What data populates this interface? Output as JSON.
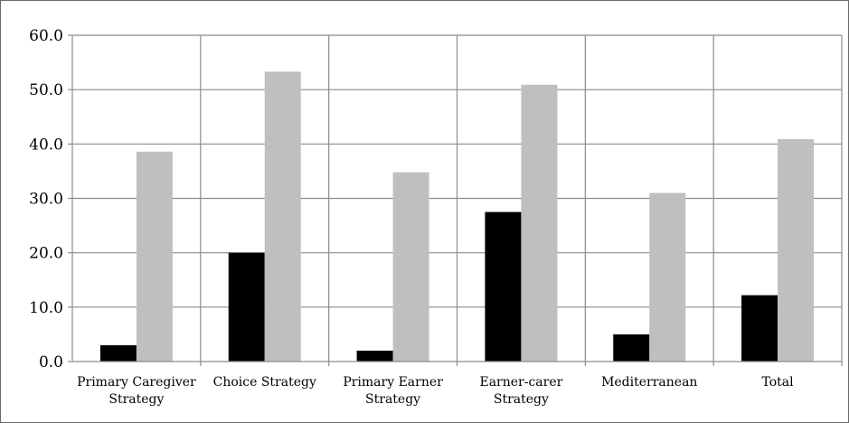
{
  "chart_data": {
    "type": "bar",
    "categories": [
      [
        "Primary Caregiver",
        "Strategy"
      ],
      [
        "Choice Strategy"
      ],
      [
        "Primary Earner",
        "Strategy"
      ],
      [
        "Earner-carer",
        "Strategy"
      ],
      [
        "Mediterranean"
      ],
      [
        "Total"
      ]
    ],
    "series": [
      {
        "values": [
          3.0,
          20.0,
          2.0,
          27.5,
          5.0,
          12.2
        ],
        "color": "#000000"
      },
      {
        "values": [
          38.6,
          53.3,
          34.8,
          50.9,
          31.0,
          40.9
        ],
        "color": "#bfbfbf"
      }
    ],
    "ylim": [
      0,
      60
    ],
    "yticks": [
      "0.0",
      "10.0",
      "20.0",
      "30.0",
      "40.0",
      "50.0",
      "60.0"
    ],
    "grid": true,
    "gridColor": "#8c8c8c",
    "legend": "none"
  }
}
